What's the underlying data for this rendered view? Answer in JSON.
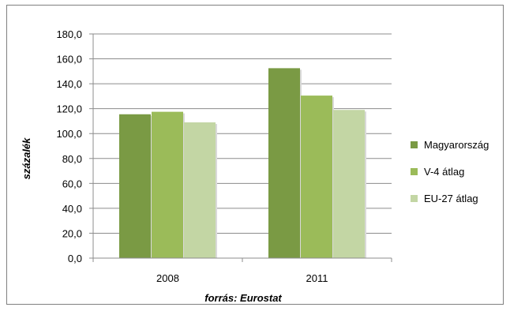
{
  "chart_data": {
    "type": "bar",
    "categories": [
      "2008",
      "2011"
    ],
    "series": [
      {
        "name": "Magyarország",
        "values": [
          115.5,
          152.5
        ],
        "color": "#7a9a44"
      },
      {
        "name": "V-4 átlag",
        "values": [
          117.5,
          130.5
        ],
        "color": "#9bbb59"
      },
      {
        "name": "EU-27 átlag",
        "values": [
          109,
          119
        ],
        "color": "#c3d6a4"
      }
    ],
    "yticks": [
      "0,0",
      "20,0",
      "40,0",
      "60,0",
      "80,0",
      "100,0",
      "120,0",
      "140,0",
      "160,0",
      "180,0"
    ],
    "ylim": [
      0,
      180
    ],
    "ylabel": "százalék",
    "xlabel": "forrás: Eurostat",
    "grid": true,
    "legend_position": "right"
  }
}
